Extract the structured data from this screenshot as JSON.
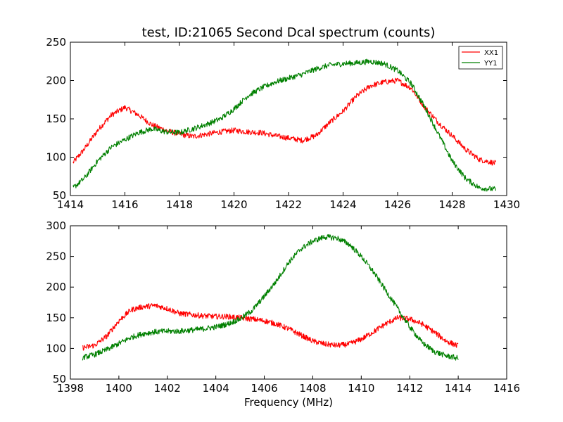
{
  "chart_data": [
    {
      "type": "line",
      "title": "test, ID:21065 Second Dcal spectrum (counts)",
      "xlabel": "",
      "ylabel": "",
      "xlim": [
        1414,
        1430
      ],
      "ylim": [
        50,
        250
      ],
      "xticks": [
        "1414",
        "1416",
        "1418",
        "1420",
        "1422",
        "1424",
        "1426",
        "1428",
        "1430"
      ],
      "yticks": [
        "50",
        "100",
        "150",
        "200",
        "250"
      ],
      "legend_position": "top-right",
      "x": [
        1414.1,
        1414.5,
        1415.0,
        1415.5,
        1416.0,
        1416.5,
        1417.0,
        1417.5,
        1418.0,
        1418.5,
        1419.0,
        1419.5,
        1420.0,
        1420.5,
        1421.0,
        1421.5,
        1422.0,
        1422.5,
        1423.0,
        1423.5,
        1424.0,
        1424.5,
        1425.0,
        1425.5,
        1426.0,
        1426.5,
        1427.0,
        1427.5,
        1428.0,
        1428.5,
        1429.0,
        1429.6
      ],
      "series": [
        {
          "name": "XX1",
          "color": "#ff0000",
          "values": [
            93,
            110,
            135,
            155,
            165,
            155,
            142,
            135,
            130,
            127,
            130,
            133,
            135,
            133,
            132,
            128,
            125,
            122,
            128,
            145,
            160,
            180,
            193,
            198,
            200,
            190,
            165,
            145,
            128,
            110,
            97,
            92
          ]
        },
        {
          "name": "YY1",
          "color": "#008000",
          "values": [
            60,
            72,
            95,
            113,
            123,
            132,
            137,
            133,
            132,
            137,
            143,
            150,
            163,
            180,
            190,
            198,
            203,
            208,
            215,
            220,
            222,
            223,
            225,
            222,
            213,
            196,
            165,
            130,
            95,
            72,
            60,
            58
          ]
        }
      ]
    },
    {
      "type": "line",
      "title": "",
      "xlabel": "Frequency (MHz)",
      "ylabel": "",
      "xlim": [
        1398,
        1416
      ],
      "ylim": [
        50,
        300
      ],
      "xticks": [
        "1398",
        "1400",
        "1402",
        "1404",
        "1406",
        "1408",
        "1410",
        "1412",
        "1414",
        "1416"
      ],
      "yticks": [
        "50",
        "100",
        "150",
        "200",
        "250",
        "300"
      ],
      "x": [
        1398.5,
        1399.0,
        1399.5,
        1400.0,
        1400.5,
        1401.0,
        1401.5,
        1402.0,
        1402.5,
        1403.0,
        1403.5,
        1404.0,
        1404.5,
        1405.0,
        1405.5,
        1406.0,
        1406.5,
        1407.0,
        1407.5,
        1408.0,
        1408.5,
        1409.0,
        1409.5,
        1410.0,
        1410.5,
        1411.0,
        1411.5,
        1412.0,
        1412.5,
        1413.0,
        1413.5,
        1414.0
      ],
      "series": [
        {
          "name": "",
          "color": "#ff0000",
          "values": [
            101,
            105,
            120,
            145,
            163,
            168,
            170,
            165,
            157,
            155,
            153,
            152,
            152,
            150,
            148,
            145,
            140,
            132,
            122,
            112,
            107,
            105,
            107,
            115,
            127,
            140,
            150,
            148,
            140,
            127,
            112,
            104
          ]
        },
        {
          "name": "",
          "color": "#008000",
          "values": [
            85,
            90,
            98,
            108,
            118,
            124,
            127,
            128,
            128,
            130,
            132,
            135,
            140,
            148,
            162,
            185,
            210,
            240,
            262,
            275,
            282,
            280,
            270,
            250,
            225,
            195,
            165,
            135,
            110,
            95,
            88,
            84
          ]
        }
      ]
    }
  ]
}
